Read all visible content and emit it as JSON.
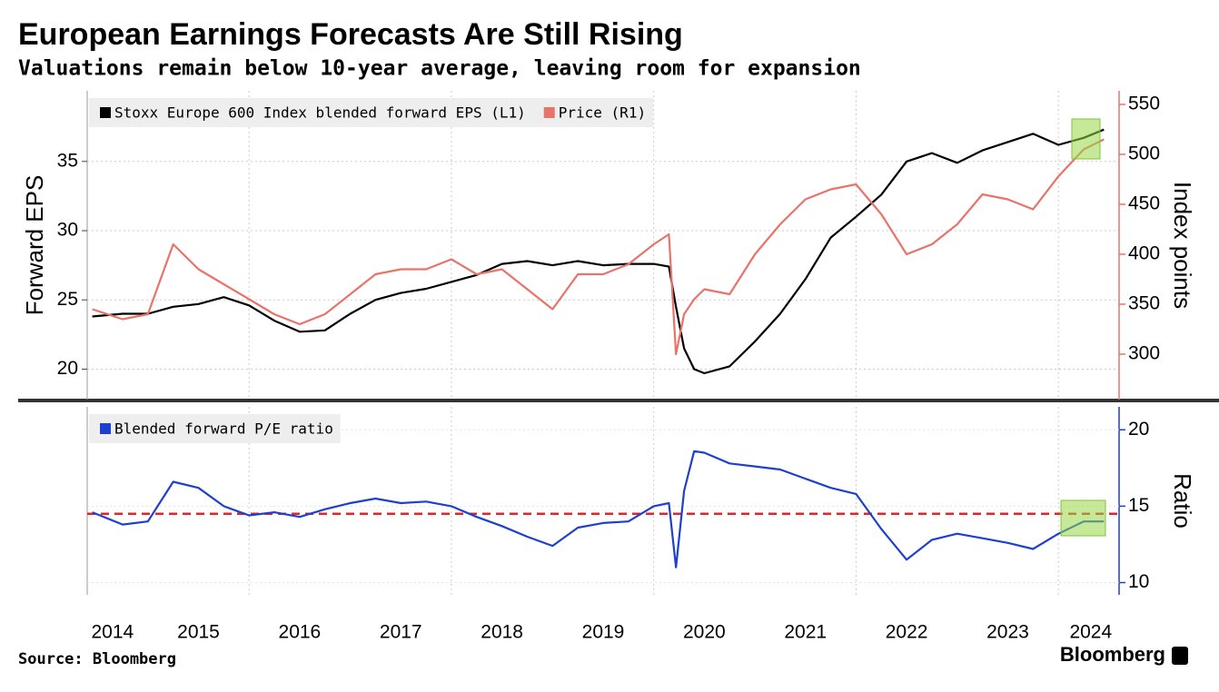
{
  "brand": "Bloomberg",
  "chart_data": [
    {
      "type": "line",
      "title": "European Earnings Forecasts Are Still Rising",
      "subtitle": "Valuations remain below 10-year average, leaving room for expansion",
      "source": "Source: Bloomberg",
      "x": [
        2014.45,
        2014.75,
        2015,
        2015.25,
        2015.5,
        2015.75,
        2016,
        2016.25,
        2016.5,
        2016.75,
        2017,
        2017.25,
        2017.5,
        2017.75,
        2018,
        2018.25,
        2018.5,
        2018.75,
        2019,
        2019.25,
        2019.5,
        2019.75,
        2020,
        2020.15,
        2020.22,
        2020.3,
        2020.4,
        2020.5,
        2020.75,
        2021,
        2021.25,
        2021.5,
        2021.75,
        2022,
        2022.25,
        2022.5,
        2022.75,
        2023,
        2023.25,
        2023.5,
        2023.75,
        2024,
        2024.25,
        2024.45
      ],
      "xlim": [
        2014.4,
        2024.6
      ],
      "xgrid": [
        2016,
        2018,
        2020,
        2022,
        2024
      ],
      "ylabel": "Forward EPS",
      "y2label": "Index points",
      "ylim": [
        17.8,
        40.1
      ],
      "yticks": [
        20,
        25,
        30,
        35
      ],
      "y2lim": [
        254.5,
        563.6
      ],
      "y2ticks": [
        300,
        350,
        400,
        450,
        500,
        550
      ],
      "y2color": "#e8736b",
      "grid": true,
      "series": [
        {
          "name": "Stoxx Europe 600 Index blended forward EPS (L1)",
          "color": "#000000",
          "axis": "y",
          "values": [
            23.8,
            24.0,
            24.0,
            24.5,
            24.7,
            25.2,
            24.6,
            23.5,
            22.7,
            22.8,
            24.0,
            25.0,
            25.5,
            25.8,
            26.3,
            26.8,
            27.6,
            27.8,
            27.5,
            27.8,
            27.5,
            27.6,
            27.6,
            27.4,
            24.5,
            21.5,
            20.0,
            19.7,
            20.2,
            22.0,
            24.0,
            26.5,
            29.5,
            31.0,
            32.6,
            35.0,
            35.6,
            34.9,
            35.8,
            36.4,
            37.0,
            36.2,
            36.7,
            37.3
          ]
        },
        {
          "name": "Price (R1)",
          "color": "#e8736b",
          "axis": "y2",
          "values": [
            345,
            335,
            340,
            410,
            385,
            370,
            355,
            340,
            330,
            340,
            360,
            380,
            385,
            385,
            395,
            380,
            385,
            365,
            345,
            380,
            380,
            390,
            410,
            420,
            300,
            340,
            355,
            365,
            360,
            400,
            430,
            455,
            465,
            470,
            440,
            400,
            410,
            430,
            460,
            455,
            445,
            478,
            505,
            515
          ]
        }
      ]
    },
    {
      "type": "line",
      "x": [
        2014.45,
        2014.75,
        2015,
        2015.25,
        2015.5,
        2015.75,
        2016,
        2016.25,
        2016.5,
        2016.75,
        2017,
        2017.25,
        2017.5,
        2017.75,
        2018,
        2018.25,
        2018.5,
        2018.75,
        2019,
        2019.25,
        2019.5,
        2019.75,
        2020,
        2020.15,
        2020.22,
        2020.3,
        2020.4,
        2020.5,
        2020.75,
        2021,
        2021.25,
        2021.5,
        2021.75,
        2022,
        2022.25,
        2022.5,
        2022.75,
        2023,
        2023.25,
        2023.5,
        2023.75,
        2024,
        2024.25,
        2024.45
      ],
      "xlim": [
        2014.4,
        2024.6
      ],
      "xgrid": [
        2016,
        2018,
        2020,
        2022,
        2024
      ],
      "xticks": [
        {
          "value": 2014.65,
          "label": "2014"
        },
        {
          "value": 2015.5,
          "label": "2015"
        },
        {
          "value": 2016.5,
          "label": "2016"
        },
        {
          "value": 2017.5,
          "label": "2017"
        },
        {
          "value": 2018.5,
          "label": "2018"
        },
        {
          "value": 2019.5,
          "label": "2019"
        },
        {
          "value": 2020.5,
          "label": "2020"
        },
        {
          "value": 2021.5,
          "label": "2021"
        },
        {
          "value": 2022.5,
          "label": "2022"
        },
        {
          "value": 2023.5,
          "label": "2023"
        },
        {
          "value": 2024.32,
          "label": "2024"
        }
      ],
      "y2label": "Ratio",
      "y2lim": [
        9.2,
        21.5
      ],
      "y2ticks": [
        10,
        15,
        20
      ],
      "y2color": "#1f3fcf",
      "grid": true,
      "hline": {
        "value": 14.5,
        "color": "#e0262b"
      },
      "series": [
        {
          "name": "Blended forward P/E ratio",
          "color": "#1f3fcf",
          "axis": "y2",
          "values": [
            14.6,
            13.8,
            14.0,
            16.6,
            16.2,
            15.0,
            14.4,
            14.6,
            14.3,
            14.8,
            15.2,
            15.5,
            15.2,
            15.3,
            15.0,
            14.3,
            13.7,
            13.0,
            12.4,
            13.6,
            13.9,
            14.0,
            15.0,
            15.2,
            11.0,
            16.0,
            18.6,
            18.5,
            17.8,
            17.6,
            17.4,
            16.8,
            16.2,
            15.8,
            13.5,
            11.5,
            12.8,
            13.2,
            12.9,
            12.6,
            12.2,
            13.2,
            14.0,
            14.0
          ]
        }
      ]
    }
  ]
}
